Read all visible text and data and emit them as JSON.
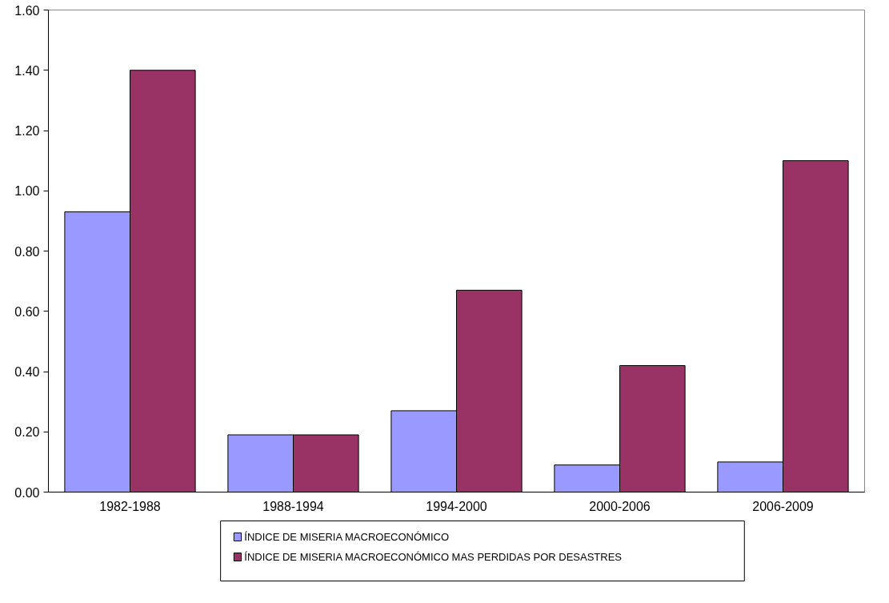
{
  "chart_data": {
    "type": "bar",
    "categories": [
      "1982-1988",
      "1988-1994",
      "1994-2000",
      "2000-2006",
      "2006-2009"
    ],
    "series": [
      {
        "name": "ÍNDICE DE MISERIA MACROECONÓMICO",
        "color": "#9999ff",
        "values": [
          0.93,
          0.19,
          0.27,
          0.09,
          0.1
        ]
      },
      {
        "name": "ÍNDICE DE MISERIA MACROECONÓMICO MAS PERDIDAS POR DESASTRES",
        "color": "#993366",
        "values": [
          1.4,
          0.19,
          0.67,
          0.42,
          1.1
        ]
      }
    ],
    "ylim": [
      0,
      1.6
    ],
    "yticks": [
      {
        "value": 0,
        "label": "0.00"
      },
      {
        "value": 0.2,
        "label": "0.20"
      },
      {
        "value": 0.4,
        "label": "0.40"
      },
      {
        "value": 0.6,
        "label": "0.60"
      },
      {
        "value": 0.8,
        "label": "0.80"
      },
      {
        "value": 1.0,
        "label": "1.00"
      },
      {
        "value": 1.2,
        "label": "1.20"
      },
      {
        "value": 1.4,
        "label": "1.40"
      },
      {
        "value": 1.6,
        "label": "1.60"
      }
    ],
    "grid": false,
    "legend": "bottom"
  }
}
